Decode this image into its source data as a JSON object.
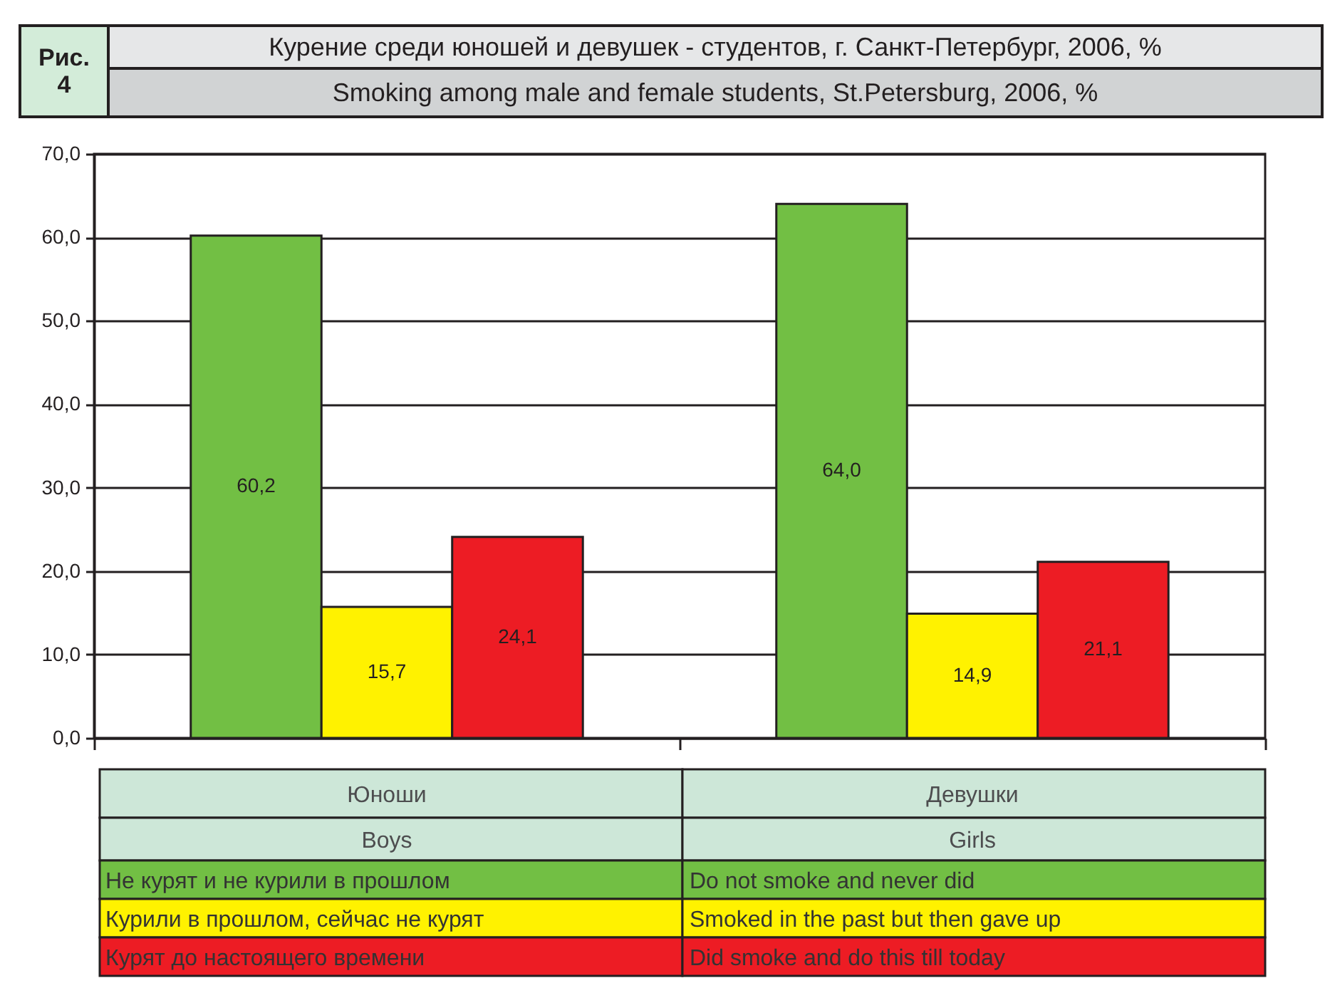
{
  "chart_data": {
    "type": "bar",
    "title": "Курение среди юношей и девушек - студентов, г. Санкт-Петербург, 2006, %",
    "subtitle": "Smoking among male and female students, St.Petersburg, 2006, %",
    "annotations": [
      "Рис. 4",
      "Boys",
      "Girls",
      "Do not smoke and never did",
      "Smoked in the past but then gave up",
      "Did smoke and do this till today"
    ],
    "categories": [
      "Юноши",
      "Девушки"
    ],
    "series": [
      {
        "name": "Не курят и не курили в прошлом",
        "color": "#72bf44",
        "values": [
          60.2,
          64.0
        ],
        "value_labels": [
          "60,2",
          "64,0"
        ]
      },
      {
        "name": "Курили в прошлом, сейчас не курят",
        "color": "#fff200",
        "values": [
          15.7,
          14.9
        ],
        "value_labels": [
          "15,7",
          "14,9"
        ]
      },
      {
        "name": "Курят до настоящего времени",
        "color": "#ed1c24",
        "values": [
          24.1,
          21.1
        ],
        "value_labels": [
          "24,1",
          "21,1"
        ]
      }
    ],
    "ylim": [
      0,
      70
    ],
    "yticks": [
      {
        "value": 0,
        "label": "0,0"
      },
      {
        "value": 10,
        "label": "10,0"
      },
      {
        "value": 20,
        "label": "20,0"
      },
      {
        "value": 30,
        "label": "30,0"
      },
      {
        "value": 40,
        "label": "40,0"
      },
      {
        "value": 50,
        "label": "50,0"
      },
      {
        "value": 60,
        "label": "60,0"
      },
      {
        "value": 70,
        "label": "70,0"
      }
    ],
    "grid": "y",
    "legend": "bottom",
    "tick_labels": "y"
  }
}
